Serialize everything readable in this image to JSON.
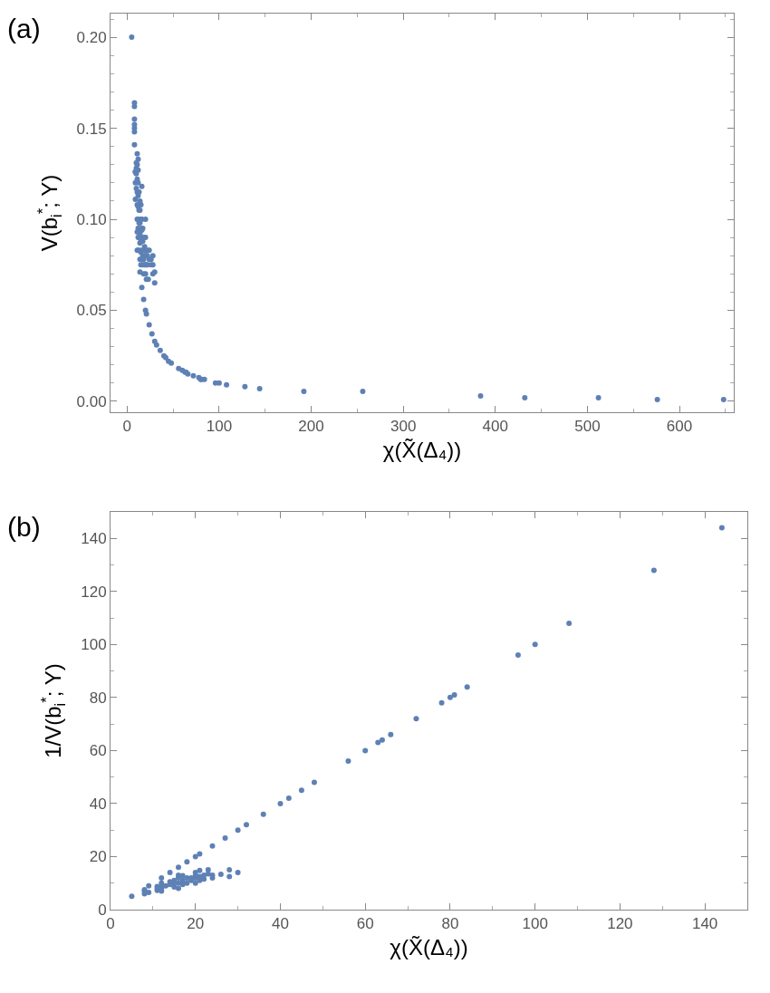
{
  "chart_data": [
    {
      "type": "scatter",
      "xlabel": "χ(X̃(Δ₄))",
      "ylabel": "V(b$_{i}$$^{*}$; Y)",
      "annotations": [
        "(a)"
      ],
      "marker": "circle",
      "xlim": [
        -18,
        659
      ],
      "xticks": [
        0,
        100,
        200,
        300,
        400,
        500,
        600
      ],
      "ylim": [
        -0.006,
        0.213
      ],
      "yticks": [
        {
          "value": 0,
          "label": "0.00"
        },
        {
          "value": 0.05,
          "label": "0.05"
        },
        {
          "value": 0.1,
          "label": "0.10"
        },
        {
          "value": 0.15,
          "label": "0.15"
        },
        {
          "value": 0.2,
          "label": "0.20"
        }
      ],
      "series": [
        {
          "color": "#5e81b5",
          "x": [
            5,
            8,
            8,
            8,
            8,
            8,
            8,
            8,
            9,
            9,
            9,
            9,
            10,
            10,
            10,
            10,
            11,
            11,
            11,
            11,
            11,
            11,
            11,
            11,
            12,
            12,
            12,
            12,
            12,
            12,
            12,
            12,
            12,
            13,
            13,
            13,
            13,
            13,
            14,
            14,
            14,
            14,
            14,
            14,
            14,
            15,
            15,
            15,
            15,
            15,
            15,
            16,
            16,
            16,
            16,
            16,
            16,
            17,
            17,
            17,
            17,
            18,
            18,
            18,
            18,
            19,
            19,
            19,
            20,
            20,
            20,
            20,
            20,
            20,
            20,
            21,
            21,
            21,
            21,
            22,
            22,
            23,
            23,
            24,
            24,
            24,
            26,
            26,
            27,
            28,
            28,
            28,
            30,
            30,
            30,
            32,
            36,
            40,
            42,
            45,
            48,
            56,
            60,
            63,
            64,
            66,
            72,
            78,
            80,
            81,
            84,
            96,
            100,
            108,
            128,
            144,
            192,
            256,
            384,
            432,
            512,
            576,
            648
          ],
          "values": [
            0.2,
            0.164,
            0.162,
            0.155,
            0.152,
            0.15,
            0.148,
            0.141,
            0.126,
            0.12,
            0.111,
            0.126,
            0.131,
            0.125,
            0.117,
            0.128,
            0.136,
            0.13,
            0.122,
            0.115,
            0.108,
            0.1,
            0.093,
            0.083,
            0.133,
            0.127,
            0.12,
            0.113,
            0.107,
            0.1,
            0.095,
            0.09,
            0.083,
            0.115,
            0.105,
            0.098,
            0.09,
            0.083,
            0.11,
            0.105,
            0.098,
            0.092,
            0.087,
            0.078,
            0.071,
            0.108,
            0.1,
            0.095,
            0.088,
            0.082,
            0.075,
            0.118,
            0.1,
            0.094,
            0.083,
            0.078,
            0.0625,
            0.095,
            0.088,
            0.08,
            0.075,
            0.09,
            0.078,
            0.07,
            0.056,
            0.085,
            0.08,
            0.075,
            0.1,
            0.09,
            0.083,
            0.08,
            0.075,
            0.07,
            0.05,
            0.08,
            0.075,
            0.067,
            0.048,
            0.08,
            0.075,
            0.083,
            0.067,
            0.083,
            0.078,
            0.042,
            0.078,
            0.075,
            0.037,
            0.08,
            0.075,
            0.07,
            0.071,
            0.065,
            0.033,
            0.031,
            0.028,
            0.025,
            0.024,
            0.022,
            0.021,
            0.018,
            0.017,
            0.016,
            0.016,
            0.015,
            0.014,
            0.013,
            0.012,
            0.012,
            0.012,
            0.01,
            0.01,
            0.009,
            0.008,
            0.007,
            0.0055,
            0.0055,
            0.003,
            0.002,
            0.002,
            0.001,
            0.001
          ]
        }
      ]
    },
    {
      "type": "scatter",
      "xlabel": "χ(X̃(Δ₄))",
      "ylabel": "1/V(b$_{i}$$^{*}$; Y)",
      "annotations": [
        "(b)"
      ],
      "marker": "circle",
      "xlim": [
        0,
        150
      ],
      "xticks": [
        0,
        20,
        40,
        60,
        80,
        100,
        120,
        140
      ],
      "ylim": [
        0,
        150
      ],
      "yticks": [
        0,
        20,
        40,
        60,
        80,
        100,
        120,
        140
      ],
      "series": [
        {
          "color": "#5e81b5",
          "x": [
            5,
            8,
            8,
            8,
            9,
            9,
            11,
            11,
            11,
            12,
            12,
            12,
            12,
            12,
            13,
            14,
            14,
            14,
            15,
            15,
            15,
            16,
            16,
            16,
            16,
            16,
            17,
            17,
            17,
            18,
            18,
            18,
            19,
            19,
            20,
            20,
            20,
            20,
            20,
            21,
            21,
            21,
            21,
            22,
            22,
            23,
            23,
            24,
            24,
            24,
            26,
            27,
            28,
            28,
            30,
            30,
            32,
            36,
            40,
            42,
            45,
            48,
            56,
            60,
            63,
            64,
            66,
            72,
            78,
            80,
            81,
            84,
            96,
            100,
            108,
            128,
            144
          ],
          "values": [
            5,
            6,
            7,
            7.5,
            9,
            6.5,
            7.3,
            8,
            8.7,
            12,
            7,
            8,
            9,
            10,
            9,
            14,
            9.5,
            10.5,
            8.5,
            10,
            11,
            16,
            8,
            10,
            12,
            13,
            9.5,
            11,
            12.8,
            18,
            10,
            12,
            11,
            12,
            20,
            10,
            12,
            13,
            14,
            21,
            11,
            12.5,
            14.8,
            11.5,
            13,
            15,
            13.5,
            24,
            12,
            13,
            13.3,
            27,
            15,
            12.5,
            30,
            14,
            32,
            36,
            40,
            42,
            45,
            48,
            56,
            60,
            63,
            64,
            66,
            72,
            78,
            80,
            81,
            84,
            96,
            100,
            108,
            128,
            144
          ]
        }
      ]
    }
  ]
}
